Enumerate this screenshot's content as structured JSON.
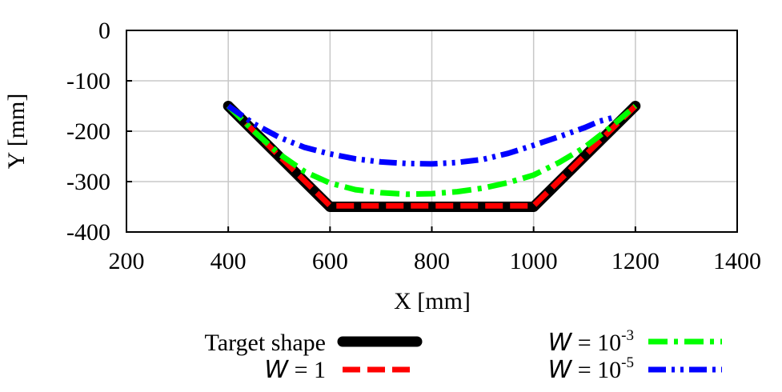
{
  "chart_data": {
    "type": "line",
    "xlabel": "X [mm]",
    "ylabel": "Y [mm]",
    "xlim": [
      200,
      1400
    ],
    "ylim": [
      -400,
      0
    ],
    "xticks": [
      200,
      400,
      600,
      800,
      1000,
      1200,
      1400
    ],
    "yticks": [
      0,
      -100,
      -200,
      -300,
      -400
    ],
    "xtick_labels": [
      "200",
      "400",
      "600",
      "800",
      "1000",
      "1200",
      "1400"
    ],
    "ytick_labels": [
      "0",
      "-100",
      "-200",
      "-300",
      "-400"
    ],
    "grid": true,
    "legend_position": "bottom",
    "series": [
      {
        "name": "Target shape",
        "color": "#000000",
        "style": "solid",
        "x": [
          400,
          600,
          1000,
          1200
        ],
        "y": [
          -150,
          -350,
          -350,
          -150
        ]
      },
      {
        "name": "W = 1",
        "legend_prefix": "W",
        "legend_suffix": " = 1",
        "color": "#ff0000",
        "style": "dash",
        "x": [
          400,
          600,
          1000,
          1200
        ],
        "y": [
          -150,
          -348,
          -348,
          -150
        ]
      },
      {
        "name": "W = 10-3",
        "legend_prefix": "W",
        "legend_suffix": " = 10",
        "legend_exp": "-3",
        "color": "#00ff00",
        "style": "dashdot",
        "x": [
          400,
          450,
          500,
          550,
          600,
          650,
          700,
          750,
          800,
          850,
          900,
          950,
          1000,
          1050,
          1100,
          1150,
          1200
        ],
        "y": [
          -150,
          -200,
          -245,
          -280,
          -303,
          -316,
          -322,
          -325,
          -324,
          -320,
          -313,
          -302,
          -287,
          -262,
          -232,
          -193,
          -150
        ]
      },
      {
        "name": "W = 10-5",
        "legend_prefix": "W",
        "legend_suffix": " = 10",
        "legend_exp": "-5",
        "color": "#0000ff",
        "style": "dashdotdot",
        "x": [
          400,
          450,
          500,
          550,
          600,
          650,
          700,
          750,
          800,
          850,
          900,
          950,
          1000,
          1050,
          1100,
          1130,
          1160
        ],
        "y": [
          -150,
          -185,
          -212,
          -232,
          -245,
          -255,
          -261,
          -264,
          -265,
          -262,
          -256,
          -244,
          -228,
          -211,
          -193,
          -180,
          -172
        ]
      }
    ]
  }
}
